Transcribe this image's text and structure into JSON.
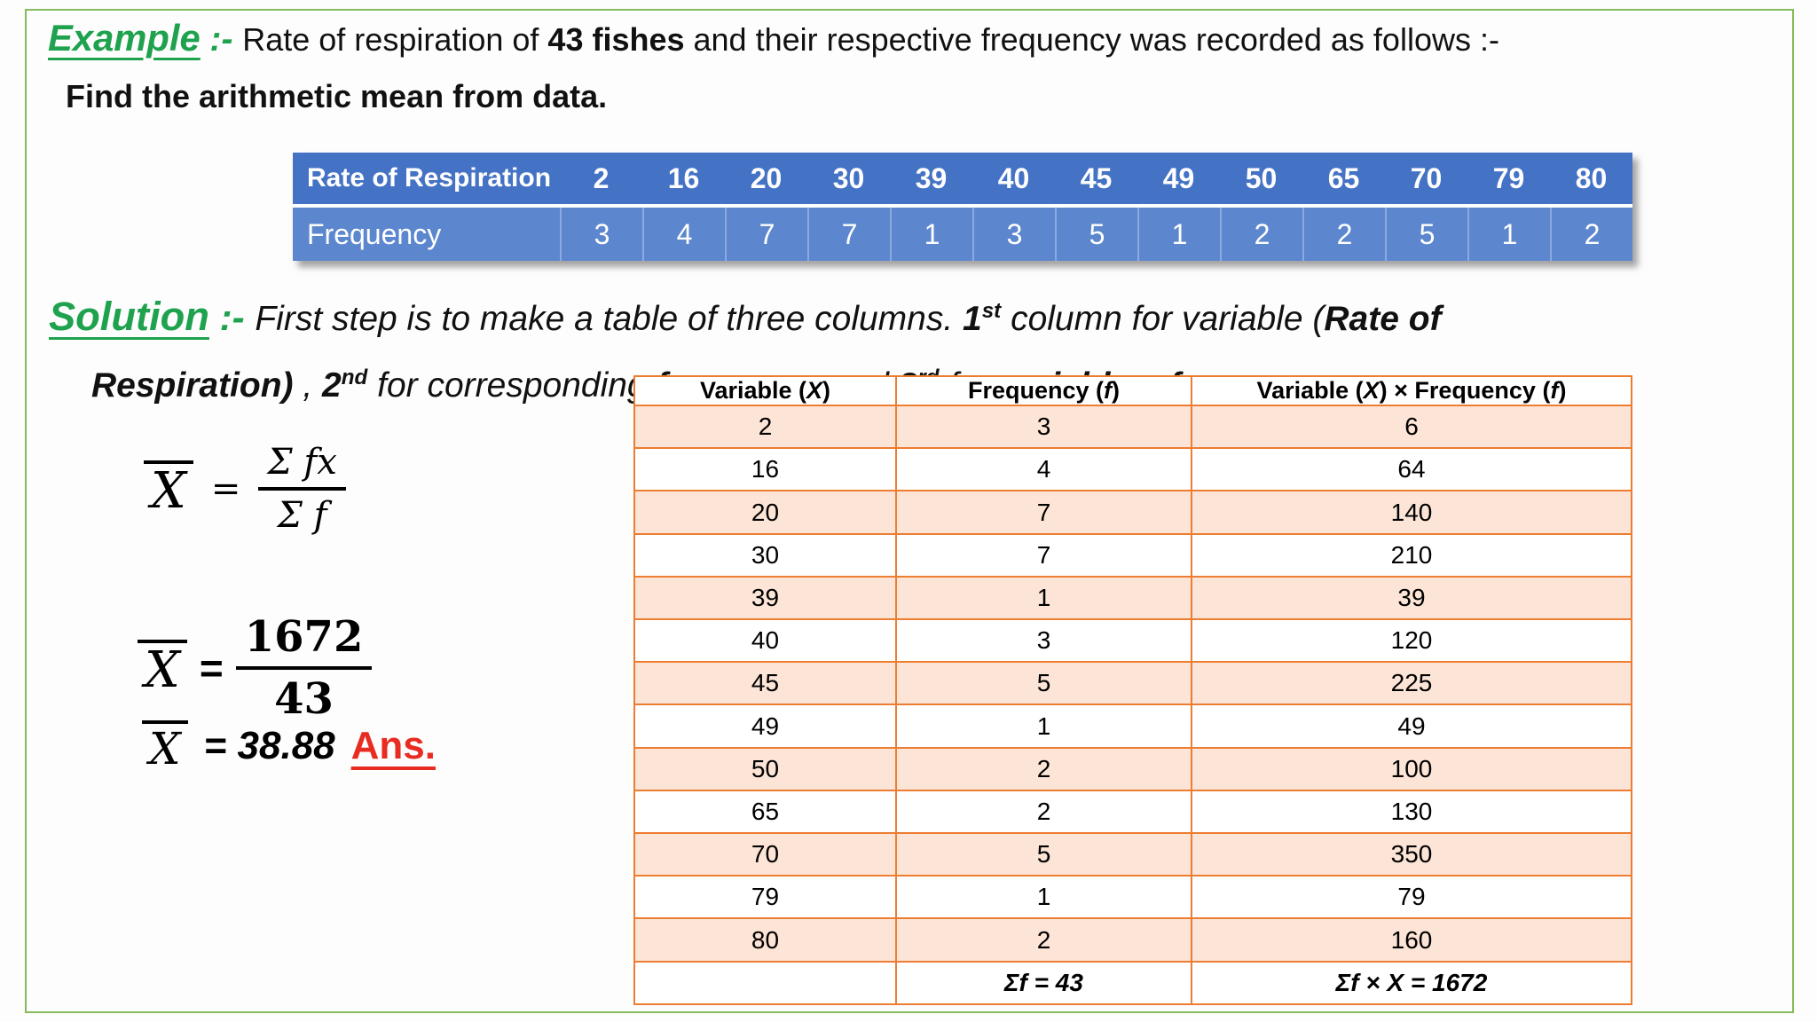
{
  "colors": {
    "green_text": "#1EA24E",
    "border_green": "#86BA5C",
    "blue_header": "#4472C4",
    "blue_row": "#5C87CE",
    "blue_divider": "#8BA9DE",
    "orange_border": "#ED7D31",
    "peach_fill": "#FCE4D6",
    "red_accent": "#E82C21",
    "text_black": "#111111"
  },
  "title": {
    "segments": [
      {
        "t": "Example",
        "s": "green-label"
      },
      {
        "t": " :- ",
        "s": "green-sep"
      },
      {
        "t": "Rate of respiration of ",
        "s": "n"
      },
      {
        "t": "43 fishes",
        "s": "b"
      },
      {
        "t": " and their respective frequency was recorded as follows :-",
        "s": "n"
      }
    ]
  },
  "subtitle": "Find the arithmetic mean from data.",
  "freq_table": {
    "row1_label": "Rate of Respiration",
    "row2_label": "Frequency",
    "rates": [
      "2",
      "16",
      "20",
      "30",
      "39",
      "40",
      "45",
      "49",
      "50",
      "65",
      "70",
      "79",
      "80"
    ],
    "frequencies": [
      "3",
      "4",
      "7",
      "7",
      "1",
      "3",
      "5",
      "1",
      "2",
      "2",
      "5",
      "1",
      "2"
    ]
  },
  "solution": {
    "line1_segments": [
      {
        "t": "Solution",
        "s": "green-label"
      },
      {
        "t": " :- ",
        "s": "green-sep"
      },
      {
        "t": "First step is to make a table of three columns. ",
        "s": "i"
      },
      {
        "t": "1",
        "s": "bi"
      },
      {
        "t": "st",
        "s": "sup"
      },
      {
        "t": " column for variable (",
        "s": "i"
      },
      {
        "t": "Rate of",
        "s": "bi"
      }
    ],
    "line2_segments": [
      {
        "t": "Respiration)",
        "s": "bi"
      },
      {
        "t": " , ",
        "s": "i"
      },
      {
        "t": "2",
        "s": "bi"
      },
      {
        "t": "nd",
        "s": "sup"
      },
      {
        "t": " for corresponding ",
        "s": "i"
      },
      {
        "t": "frequency",
        "s": "bi"
      },
      {
        "t": " and ",
        "s": "i"
      },
      {
        "t": "3",
        "s": "bi"
      },
      {
        "t": "rd",
        "s": "sup"
      },
      {
        "t": " for ",
        "s": "i"
      },
      {
        "t": "variable × frequency",
        "s": "bi"
      }
    ]
  },
  "formulas": {
    "formula1": {
      "lhs": "X",
      "eq": "=",
      "numerator": "Σ fx",
      "denominator": "Σ f"
    },
    "formula2": {
      "lhs": "X",
      "eq": "=",
      "numerator": "1672",
      "denominator": "43"
    },
    "result": {
      "lhs": "X",
      "eq_value": "= 38.88",
      "ans_label": "Ans."
    }
  },
  "main_table": {
    "headers": [
      [
        {
          "t": "Variable (",
          "s": "b"
        },
        {
          "t": "X",
          "s": "bi"
        },
        {
          "t": ")",
          "s": "b"
        }
      ],
      [
        {
          "t": "Frequency (",
          "s": "b"
        },
        {
          "t": "f",
          "s": "bi"
        },
        {
          "t": ")",
          "s": "b"
        }
      ],
      [
        {
          "t": "Variable (",
          "s": "b"
        },
        {
          "t": "X",
          "s": "bi"
        },
        {
          "t": ") × Frequency (",
          "s": "b"
        },
        {
          "t": "f",
          "s": "bi"
        },
        {
          "t": ")",
          "s": "b"
        }
      ]
    ],
    "rows": [
      [
        "2",
        "3",
        "6"
      ],
      [
        "16",
        "4",
        "64"
      ],
      [
        "20",
        "7",
        "140"
      ],
      [
        "30",
        "7",
        "210"
      ],
      [
        "39",
        "1",
        "39"
      ],
      [
        "40",
        "3",
        "120"
      ],
      [
        "45",
        "5",
        "225"
      ],
      [
        "49",
        "1",
        "49"
      ],
      [
        "50",
        "2",
        "100"
      ],
      [
        "65",
        "2",
        "130"
      ],
      [
        "70",
        "5",
        "350"
      ],
      [
        "79",
        "1",
        "79"
      ],
      [
        "80",
        "2",
        "160"
      ]
    ],
    "totals": {
      "f": "Σf  = 43",
      "fx": "Σf  ×  X = 1672"
    }
  }
}
